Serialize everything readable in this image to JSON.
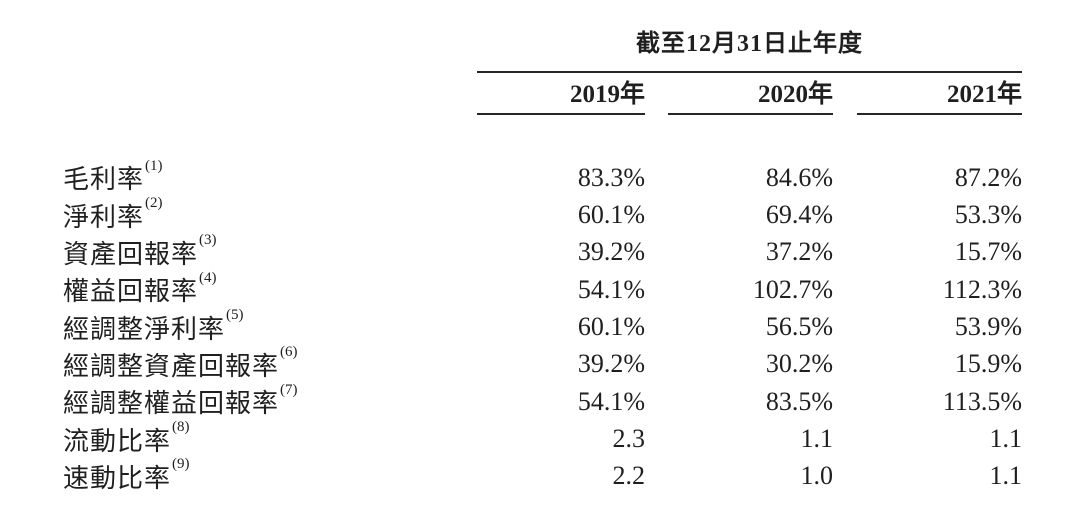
{
  "table": {
    "period_header": "截至12月31日止年度",
    "columns": [
      "2019年",
      "2020年",
      "2021年"
    ],
    "rows": [
      {
        "label": "毛利率",
        "note": "(1)",
        "values": [
          "83.3%",
          "84.6%",
          "87.2%"
        ]
      },
      {
        "label": "淨利率",
        "note": "(2)",
        "values": [
          "60.1%",
          "69.4%",
          "53.3%"
        ]
      },
      {
        "label": "資產回報率",
        "note": "(3)",
        "values": [
          "39.2%",
          "37.2%",
          "15.7%"
        ]
      },
      {
        "label": "權益回報率",
        "note": "(4)",
        "values": [
          "54.1%",
          "102.7%",
          "112.3%"
        ]
      },
      {
        "label": "經調整淨利率",
        "note": "(5)",
        "values": [
          "60.1%",
          "56.5%",
          "53.9%"
        ]
      },
      {
        "label": "經調整資產回報率",
        "note": "(6)",
        "values": [
          "39.2%",
          "30.2%",
          "15.9%"
        ]
      },
      {
        "label": "經調整權益回報率",
        "note": "(7)",
        "values": [
          "54.1%",
          "83.5%",
          "113.5%"
        ]
      },
      {
        "label": "流動比率",
        "note": "(8)",
        "values": [
          "2.3",
          "1.1",
          "1.1"
        ]
      },
      {
        "label": "速動比率",
        "note": "(9)",
        "values": [
          "2.2",
          "1.0",
          "1.1"
        ]
      }
    ]
  },
  "colors": {
    "text": "#1f1f1f",
    "rule": "#262626",
    "background": "#ffffff"
  }
}
